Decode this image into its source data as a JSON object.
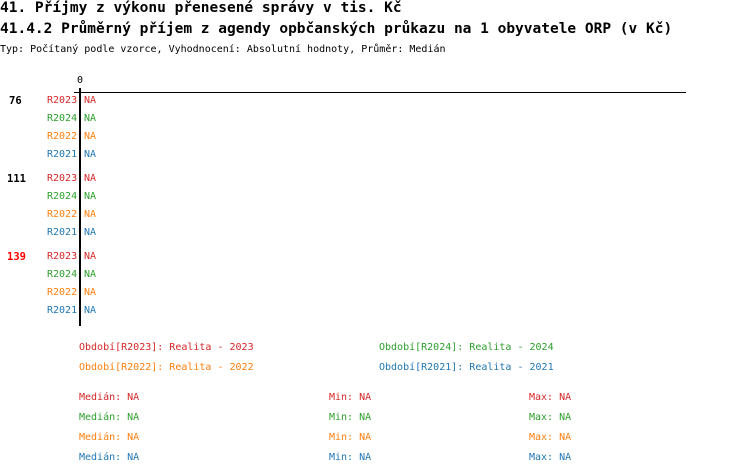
{
  "title": "41. Příjmy z výkonu přenesené správy v tis. Kč",
  "subtitle": "41.4.2 Průměrný příjem z agendy opbčanských průkazu na 1 obyvatele ORP (v Kč)",
  "meta": "Typ: Počítaný podle vzorce, Vyhodnocení: Absolutní hodnoty, Průměr: Medián",
  "colors": {
    "R2023": "#d62728",
    "R2024": "#2ca02c",
    "R2022": "#ff7f0e",
    "R2021": "#1f77b4"
  },
  "chart_data": {
    "type": "bar",
    "orientation": "horizontal",
    "x_tick_labels": [
      "0"
    ],
    "categories": [
      {
        "label": "76",
        "color": "#000000"
      },
      {
        "label": "111",
        "color": "#000000"
      },
      {
        "label": "139",
        "color": "#ff0000"
      }
    ],
    "series": [
      {
        "name": "R2023",
        "values": [
          "NA",
          "NA",
          "NA"
        ]
      },
      {
        "name": "R2024",
        "values": [
          "NA",
          "NA",
          "NA"
        ]
      },
      {
        "name": "R2022",
        "values": [
          "NA",
          "NA",
          "NA"
        ]
      },
      {
        "name": "R2021",
        "values": [
          "NA",
          "NA",
          "NA"
        ]
      }
    ],
    "legend": [
      {
        "key": "R2023",
        "text": "Období[R2023]: Realita - 2023"
      },
      {
        "key": "R2024",
        "text": "Období[R2024]: Realita - 2024"
      },
      {
        "key": "R2022",
        "text": "Období[R2022]: Realita - 2022"
      },
      {
        "key": "R2021",
        "text": "Období[R2021]: Realita - 2021"
      }
    ],
    "stats": [
      {
        "key": "R2023",
        "median": "Medián: NA",
        "min": "Min: NA",
        "max": "Max: NA"
      },
      {
        "key": "R2024",
        "median": "Medián: NA",
        "min": "Min: NA",
        "max": "Max: NA"
      },
      {
        "key": "R2022",
        "median": "Medián: NA",
        "min": "Min: NA",
        "max": "Max: NA"
      },
      {
        "key": "R2021",
        "median": "Medián: NA",
        "min": "Min: NA",
        "max": "Max: NA"
      }
    ]
  }
}
